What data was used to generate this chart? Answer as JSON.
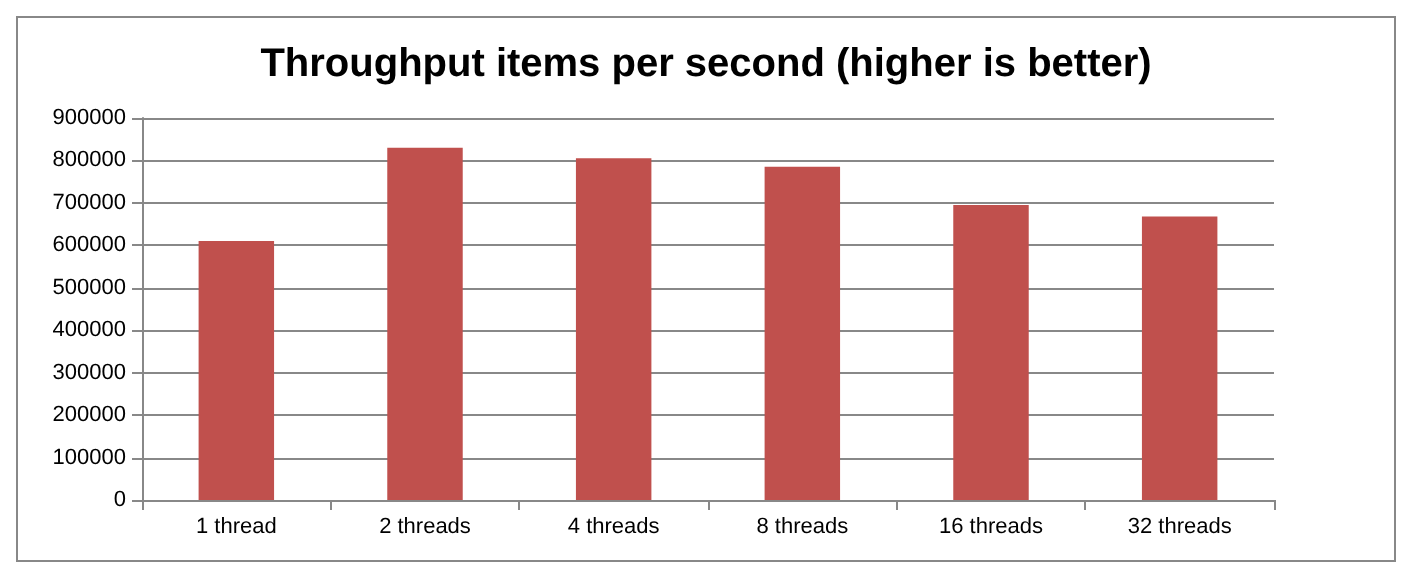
{
  "chart_data": {
    "type": "bar",
    "title": "Throughput items per second (higher is better)",
    "categories": [
      "1 thread",
      "2 threads",
      "4 threads",
      "8 threads",
      "16 threads",
      "32 threads"
    ],
    "series": [
      {
        "color": "#c0504d",
        "values": [
          610000,
          830000,
          805000,
          785000,
          695000,
          668000
        ]
      }
    ],
    "ylim": [
      0,
      900000
    ],
    "yticks": [
      0,
      100000,
      200000,
      300000,
      400000,
      500000,
      600000,
      700000,
      800000,
      900000
    ],
    "grid": "y"
  }
}
